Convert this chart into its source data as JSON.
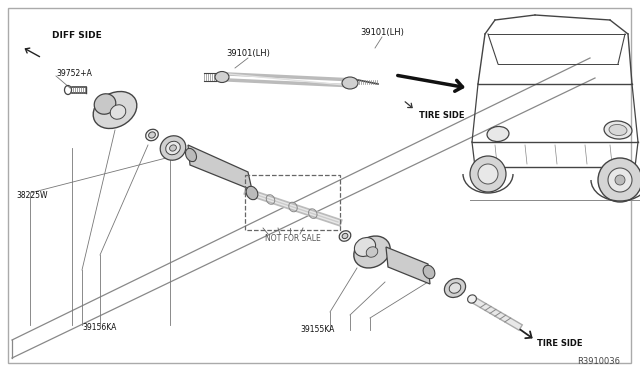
{
  "bg_color": "#ffffff",
  "border_color": "#888888",
  "line_color": "#444444",
  "text_color": "#111111",
  "diagram_ref": "R3910036",
  "labels": {
    "diff_side": "DIFF SIDE",
    "tire_side_upper": "TIRE SIDE",
    "tire_side_lower": "TIRE SIDE",
    "not_for_sale": "NOT FOR SALE",
    "part_39752A": "39752+A",
    "part_38225W": "38225W",
    "part_39156KA": "39156KA",
    "part_39155KA": "39155KA",
    "part_39101LH_left": "39101(LH)",
    "part_39101LH_right": "39101(LH)"
  }
}
